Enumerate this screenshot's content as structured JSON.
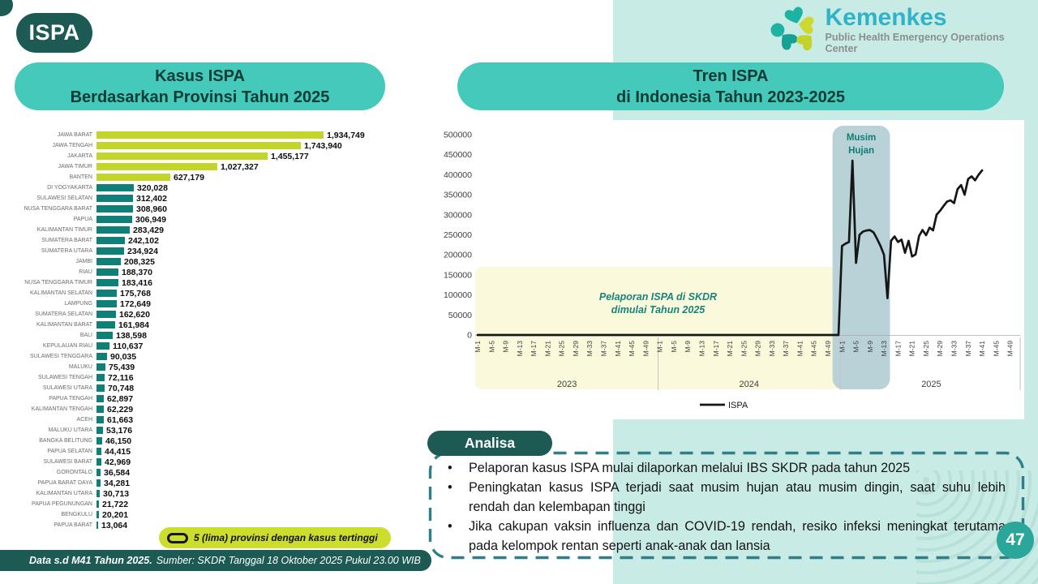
{
  "page": {
    "number": "47"
  },
  "badge": {
    "label": "ISPA"
  },
  "logo": {
    "brand": "Kemenkes",
    "subtitle": "Public Health Emergency Operations Center"
  },
  "left_panel": {
    "title_line1": "Kasus ISPA",
    "title_line2": "Berdasarkan Provinsi Tahun 2025",
    "legend": "5 (lima) provinsi dengan kasus tertinggi"
  },
  "right_panel": {
    "title_line1": "Tren ISPA",
    "title_line2": "di Indonesia Tahun 2023-2025"
  },
  "footer": {
    "bold": "Data s.d M41 Tahun 2025.",
    "rest": "Sumber: SKDR Tanggal 18 Oktober 2025 Pukul 23.00 WIB"
  },
  "analysis": {
    "title": "Analisa",
    "bullets": [
      "Pelaporan kasus ISPA mulai dilaporkan melalui IBS SKDR pada tahun 2025",
      "Peningkatan kasus ISPA terjadi saat musim hujan atau musim dingin, saat suhu lebih rendah dan kelembapan tinggi",
      "Jika cakupan vaksin influenza dan COVID-19 rendah, resiko infeksi meningkat terutama pada kelompok rentan seperti anak-anak dan lansia"
    ]
  },
  "colors": {
    "dark_teal": "#1d5a54",
    "header_teal": "#44c9ba",
    "mint_bg": "#c9ebe6",
    "bar_teal": "#0e8077",
    "highlight_lime": "#c3d42a",
    "legend_lime": "#cddd2e",
    "brand_cyan": "#2fb3c7",
    "line_black": "#161616",
    "yellow_band": "#fbf9dc",
    "rain_band": "#b9d2d7",
    "annotation_teal": "#17847b",
    "dashed_border": "#2e7f8a",
    "page_badge": "#2aa79a"
  },
  "chart_data": [
    {
      "type": "bar",
      "orientation": "horizontal",
      "title": "Kasus ISPA Berdasarkan Provinsi Tahun 2025",
      "highlight_top_n": 5,
      "highlight_color": "#c3d42a",
      "bar_color": "#0e8077",
      "note": "5 (lima) provinsi dengan kasus tertinggi",
      "categories": [
        "JAWA BARAT",
        "JAWA TENGAH",
        "JAKARTA",
        "JAWA TIMUR",
        "BANTEN",
        "DI YOGYAKARTA",
        "SULAWESI SELATAN",
        "NUSA TENGGARA BARAT",
        "PAPUA",
        "KALIMANTAN TIMUR",
        "SUMATERA BARAT",
        "SUMATERA UTARA",
        "JAMBI",
        "RIAU",
        "NUSA TENGGARA TIMUR",
        "KALIMANTAN SELATAN",
        "LAMPUNG",
        "SUMATERA SELATAN",
        "KALIMANTAN BARAT",
        "BALI",
        "KEPULAUAN RIAU",
        "SULAWESI TENGGARA",
        "MALUKU",
        "SULAWESI TENGAH",
        "SULAWESI UTARA",
        "PAPUA TENGAH",
        "KALIMANTAN TENGAH",
        "ACEH",
        "MALUKU UTARA",
        "BANGKA BELITUNG",
        "PAPUA SELATAN",
        "SULAWESI BARAT",
        "GORONTALO",
        "PAPUA BARAT DAYA",
        "KALIMANTAN UTARA",
        "PAPUA PEGUNUNGAN",
        "BENGKULU",
        "PAPUA BARAT"
      ],
      "values": [
        1934749,
        1743940,
        1455177,
        1027327,
        627179,
        320028,
        312402,
        308960,
        306949,
        283429,
        242102,
        234924,
        208325,
        188370,
        183416,
        175768,
        172649,
        162620,
        161984,
        138598,
        110637,
        90035,
        75439,
        72116,
        70748,
        62897,
        62229,
        61663,
        53176,
        46150,
        44415,
        42969,
        36584,
        34281,
        30713,
        21722,
        20201,
        13064
      ],
      "value_labels": [
        "1,934,749",
        "1,743,940",
        "1,455,177",
        "1,027,327",
        "627,179",
        "320,028",
        "312,402",
        "308,960",
        "306,949",
        "283,429",
        "242,102",
        "234,924",
        "208,325",
        "188,370",
        "183,416",
        "175,768",
        "172,649",
        "162,620",
        "161,984",
        "138,598",
        "110,637",
        "90,035",
        "75,439",
        "72,116",
        "70,748",
        "62,897",
        "62,229",
        "61,663",
        "53,176",
        "46,150",
        "44,415",
        "42,969",
        "36,584",
        "34,281",
        "30,713",
        "21,722",
        "20,201",
        "13,064"
      ]
    },
    {
      "type": "line",
      "title": "Tren ISPA di Indonesia Tahun 2023-2025",
      "ylim": [
        0,
        500000
      ],
      "ytick_step": 50000,
      "xtick_weeks": [
        1,
        5,
        9,
        13,
        17,
        21,
        25,
        29,
        33,
        37,
        41,
        45,
        49
      ],
      "xtick_prefix": "M-",
      "legend": {
        "name": "ISPA",
        "position": "bottom-center"
      },
      "series": [
        {
          "name": "ISPA",
          "color": "#161616",
          "years": [
            {
              "year": "2023",
              "weeks": 52,
              "all_zero": true
            },
            {
              "year": "2024",
              "weeks": 52,
              "all_zero": true
            },
            {
              "year": "2025",
              "weeks": 52,
              "weeks_reported": 41,
              "values": [
                222000,
                228000,
                232000,
                435000,
                180000,
                250000,
                258000,
                261000,
                262000,
                256000,
                240000,
                222000,
                200000,
                92000,
                235000,
                246000,
                232000,
                238000,
                205000,
                235000,
                196000,
                201000,
                247000,
                262000,
                249000,
                268000,
                261000,
                300000,
                310000,
                322000,
                333000,
                336000,
                329000,
                364000,
                374000,
                350000,
                389000,
                396000,
                386000,
                400000,
                411000
              ]
            }
          ]
        }
      ],
      "annotations": [
        {
          "id": "reporting-note",
          "text_lines": [
            "Pelaporan ISPA di SKDR",
            "dimulai Tahun 2025"
          ],
          "start_index": 0,
          "end_index": 103,
          "y_top": 170000,
          "fill": "#fbf9dc",
          "text_color": "#17847b"
        },
        {
          "id": "rainy-season",
          "text_lines": [
            "Musim",
            "Hujan"
          ],
          "start_index": 102,
          "end_index": 117,
          "y_top": 500000,
          "fill": "#b9d2d7",
          "text_color": "#0f7d74"
        }
      ]
    }
  ]
}
